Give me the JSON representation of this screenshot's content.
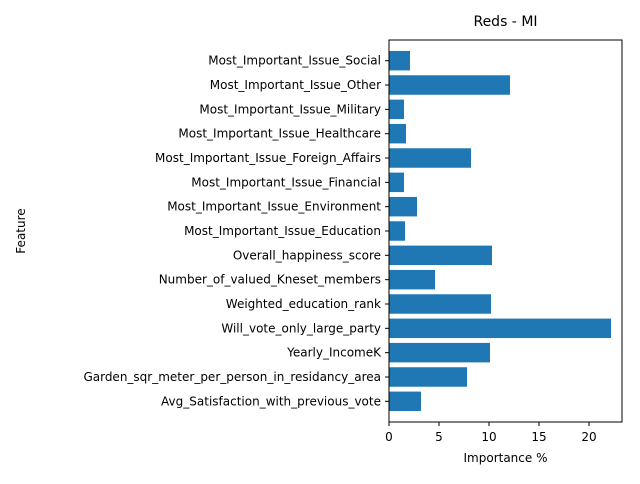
{
  "chart_data": {
    "type": "bar",
    "orientation": "horizontal",
    "title": "Reds - MI",
    "xlabel": "Importance %",
    "ylabel": "Feature",
    "xlim": [
      0,
      23.3
    ],
    "xticks": [
      0,
      5,
      10,
      15,
      20
    ],
    "grid": false,
    "bar_color": "#1f77b4",
    "categories": [
      "Most_Important_Issue_Social",
      "Most_Important_Issue_Other",
      "Most_Important_Issue_Military",
      "Most_Important_Issue_Healthcare",
      "Most_Important_Issue_Foreign_Affairs",
      "Most_Important_Issue_Financial",
      "Most_Important_Issue_Environment",
      "Most_Important_Issue_Education",
      "Overall_happiness_score",
      "Number_of_valued_Kneset_members",
      "Weighted_education_rank",
      "Will_vote_only_large_party",
      "Yearly_IncomeK",
      "Garden_sqr_meter_per_person_in_residancy_area",
      "Avg_Satisfaction_with_previous_vote"
    ],
    "values": [
      2.1,
      12.1,
      1.5,
      1.7,
      8.2,
      1.5,
      2.8,
      1.6,
      10.3,
      4.6,
      10.2,
      22.2,
      10.1,
      7.8,
      3.2
    ]
  }
}
